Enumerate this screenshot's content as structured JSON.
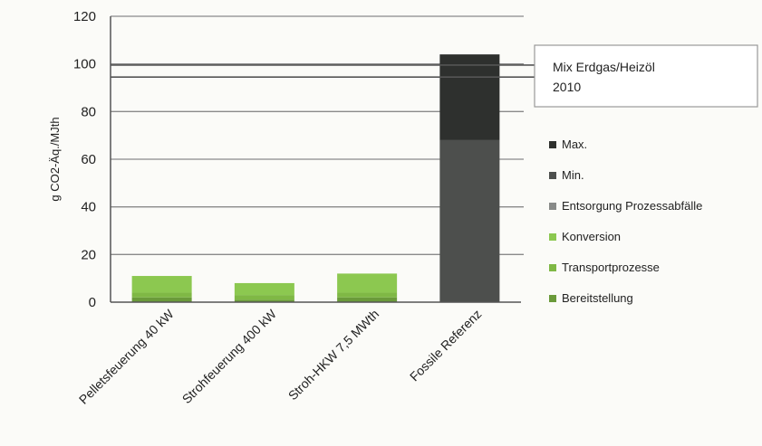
{
  "chart_data": {
    "type": "bar",
    "stacked": true,
    "ylabel": "g CO2-Äq./MJth",
    "ylim": [
      0,
      120
    ],
    "yticks": [
      0,
      20,
      40,
      60,
      80,
      100,
      120
    ],
    "grid": true,
    "legend_position": "right",
    "categories": [
      "Pelletsfeuerung 40 kW",
      "Strohfeuerung 400 kW",
      "Stroh-HKW 7,5 MWth",
      "Fossile Referenz"
    ],
    "series": [
      {
        "name": "Bereitstellung",
        "color": "#6a9a3a",
        "values": [
          2,
          1,
          2,
          0
        ]
      },
      {
        "name": "Transportprozesse",
        "color": "#7fb845",
        "values": [
          2,
          2,
          2,
          0
        ]
      },
      {
        "name": "Konversion",
        "color": "#8cc850",
        "values": [
          7,
          5,
          8,
          0
        ]
      },
      {
        "name": "Entsorgung Prozessabfälle",
        "color": "#888a88",
        "values": [
          0,
          0,
          0,
          0
        ]
      },
      {
        "name": "Min.",
        "color": "#4d4f4d",
        "values": [
          0,
          0,
          0,
          68
        ]
      },
      {
        "name": "Max.",
        "color": "#2e302e",
        "values": [
          0,
          0,
          0,
          36
        ]
      }
    ],
    "legend_order": [
      "Max.",
      "Min.",
      "Entsorgung Prozessabfälle",
      "Konversion",
      "Transportprozesse",
      "Bereitstellung"
    ],
    "reference_lines": [
      {
        "value": 99.5,
        "color": "#555555"
      },
      {
        "value": 94.5,
        "color": "#555555"
      }
    ],
    "annotation": {
      "line1": "Mix Erdgas/Heizöl",
      "line2": "2010"
    }
  }
}
